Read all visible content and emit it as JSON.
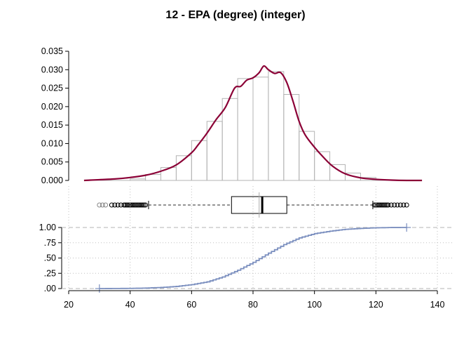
{
  "chart_data": {
    "type": "histogram",
    "title": "12 - EPA (degree) (integer)",
    "x_axis": {
      "range": [
        20,
        140
      ],
      "ticks": [
        "20",
        "40",
        "60",
        "80",
        "100",
        "120",
        "140"
      ]
    },
    "histogram": {
      "ylim": [
        0,
        0.035
      ],
      "y_ticks": [
        "0.000",
        "0.005",
        "0.010",
        "0.015",
        "0.020",
        "0.025",
        "0.030",
        "0.035"
      ],
      "bin_width": 5,
      "bins": [
        {
          "start": 40,
          "density": 0.0004
        },
        {
          "start": 45,
          "density": 0.0016
        },
        {
          "start": 50,
          "density": 0.0035
        },
        {
          "start": 55,
          "density": 0.0067
        },
        {
          "start": 60,
          "density": 0.0108
        },
        {
          "start": 65,
          "density": 0.016
        },
        {
          "start": 70,
          "density": 0.0222
        },
        {
          "start": 75,
          "density": 0.0276
        },
        {
          "start": 80,
          "density": 0.028
        },
        {
          "start": 85,
          "density": 0.0295
        },
        {
          "start": 90,
          "density": 0.0233
        },
        {
          "start": 95,
          "density": 0.0133
        },
        {
          "start": 100,
          "density": 0.0078
        },
        {
          "start": 105,
          "density": 0.0043
        },
        {
          "start": 110,
          "density": 0.002
        },
        {
          "start": 115,
          "density": 0.0008
        }
      ],
      "density_curve": [
        [
          25,
          0.0
        ],
        [
          30,
          0.0002
        ],
        [
          35,
          0.0004
        ],
        [
          40,
          0.0008
        ],
        [
          45,
          0.0014
        ],
        [
          50,
          0.0025
        ],
        [
          55,
          0.0042
        ],
        [
          60,
          0.0075
        ],
        [
          62,
          0.0095
        ],
        [
          65,
          0.0128
        ],
        [
          68,
          0.0165
        ],
        [
          71,
          0.0198
        ],
        [
          74,
          0.025
        ],
        [
          76,
          0.0255
        ],
        [
          78,
          0.0272
        ],
        [
          80,
          0.0278
        ],
        [
          82,
          0.0292
        ],
        [
          83.5,
          0.031
        ],
        [
          85,
          0.03
        ],
        [
          87,
          0.029
        ],
        [
          89,
          0.0292
        ],
        [
          91,
          0.0265
        ],
        [
          93,
          0.0215
        ],
        [
          95,
          0.016
        ],
        [
          97,
          0.0123
        ],
        [
          100,
          0.009
        ],
        [
          103,
          0.0062
        ],
        [
          106,
          0.0038
        ],
        [
          110,
          0.0018
        ],
        [
          115,
          0.0007
        ],
        [
          120,
          0.0003
        ],
        [
          125,
          0.0001
        ],
        [
          130,
          0.0
        ],
        [
          135,
          0.0
        ]
      ]
    },
    "boxplot": {
      "q1": 73,
      "median": 83,
      "q3": 91,
      "mean": 82,
      "whisker_low": 46,
      "whisker_high": 119,
      "outliers_low": [
        30,
        31,
        32,
        34,
        35,
        36,
        37,
        38,
        38.5,
        39,
        39.5,
        40,
        40.5,
        41,
        41.5,
        42,
        42.5,
        43,
        43.5,
        44,
        44.5,
        45
      ],
      "outliers_high": [
        119.5,
        120,
        120.5,
        121,
        121.5,
        122,
        122.5,
        123,
        123.5,
        124,
        125,
        126,
        127,
        128,
        129,
        130
      ]
    },
    "ecdf": {
      "ylim": [
        0,
        1
      ],
      "y_ticks": [
        ".00",
        ".25",
        ".50",
        ".75",
        "1.00"
      ],
      "min": 30,
      "max": 130,
      "points": [
        [
          30,
          0.0
        ],
        [
          40,
          0.003
        ],
        [
          45,
          0.008
        ],
        [
          50,
          0.018
        ],
        [
          55,
          0.035
        ],
        [
          60,
          0.065
        ],
        [
          65,
          0.11
        ],
        [
          70,
          0.19
        ],
        [
          75,
          0.3
        ],
        [
          80,
          0.43
        ],
        [
          85,
          0.58
        ],
        [
          90,
          0.72
        ],
        [
          95,
          0.83
        ],
        [
          100,
          0.9
        ],
        [
          105,
          0.94
        ],
        [
          110,
          0.97
        ],
        [
          115,
          0.985
        ],
        [
          120,
          0.995
        ],
        [
          125,
          0.999
        ],
        [
          130,
          1.0
        ]
      ]
    },
    "colors": {
      "density": "#8b0036",
      "histogram_bar": "#b3b3b3",
      "ecdf": "#7b8fbf",
      "reference_line": "#b3b3b3",
      "grid": "#bfbfbf",
      "axis": "#000000"
    }
  }
}
